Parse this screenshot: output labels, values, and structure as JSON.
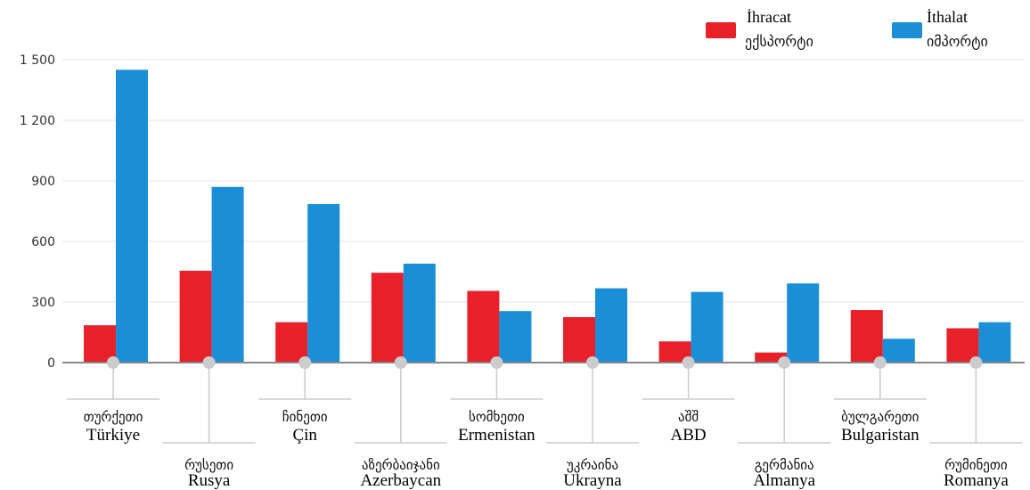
{
  "chart_data": {
    "type": "bar",
    "categories": [
      {
        "geo": "თურქეთი",
        "tr": "Türkiye"
      },
      {
        "geo": "რუსეთი",
        "tr": "Rusya"
      },
      {
        "geo": "ჩინეთი",
        "tr": "Çin"
      },
      {
        "geo": "აზერბაიჯანი",
        "tr": "Azerbaycan"
      },
      {
        "geo": "სომხეთი",
        "tr": "Ermenistan"
      },
      {
        "geo": "უკრაინა",
        "tr": "Ukrayna"
      },
      {
        "geo": "აშშ",
        "tr": "ABD"
      },
      {
        "geo": "გერმანია",
        "tr": "Almanya"
      },
      {
        "geo": "ბულგარეთი",
        "tr": "Bulgaristan"
      },
      {
        "geo": "რუმინეთი",
        "tr": "Romanya"
      }
    ],
    "series": [
      {
        "name": "İhracat",
        "name_geo": "ექსპორტი",
        "color": "#e8202a",
        "values": [
          185,
          455,
          200,
          445,
          355,
          225,
          105,
          50,
          260,
          170
        ]
      },
      {
        "name": "İthalat",
        "name_geo": "იმპორტი",
        "color": "#1a8fd8",
        "values": [
          1450,
          870,
          785,
          490,
          255,
          368,
          350,
          392,
          118,
          200
        ]
      }
    ],
    "yticks": [
      "0",
      "300",
      "600",
      "900",
      "1 200",
      "1 500"
    ],
    "ytick_values": [
      0,
      300,
      600,
      900,
      1200,
      1500
    ],
    "ylim": [
      0,
      1500
    ],
    "grid": true,
    "legend_position": "top-right",
    "axis_color": "#888888",
    "grid_color": "#e6e6e6",
    "leader_color": "#cccccc",
    "marker_color": "#cccccc"
  }
}
